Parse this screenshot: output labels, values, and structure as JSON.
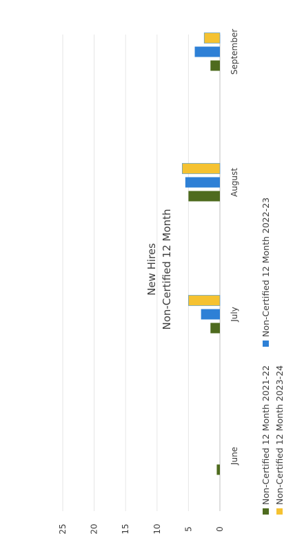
{
  "chart_data": {
    "type": "bar",
    "orientation": "rotated-90-clockwise",
    "title": "New Hires",
    "subtitle": "Non-Certified 12 Month",
    "categories": [
      "June",
      "July",
      "August",
      "September"
    ],
    "series": [
      {
        "name": "Non-Certified 12 Month 2021-22",
        "color": "#4e6b1e",
        "values": [
          0.5,
          1.5,
          5.0,
          1.5
        ]
      },
      {
        "name": "Non-Certified 12 Month 2022-23",
        "color": "#2e80d6",
        "values": [
          0,
          3.0,
          5.5,
          4.0
        ]
      },
      {
        "name": "Non-Certified 12 Month 2023-24",
        "color": "#f5c231",
        "values": [
          0,
          5.0,
          6.0,
          2.5
        ]
      }
    ],
    "ylim": [
      0,
      25
    ],
    "yticks": [
      0,
      5,
      10,
      15,
      20,
      25
    ],
    "grid": true,
    "legend_position": "bottom"
  }
}
